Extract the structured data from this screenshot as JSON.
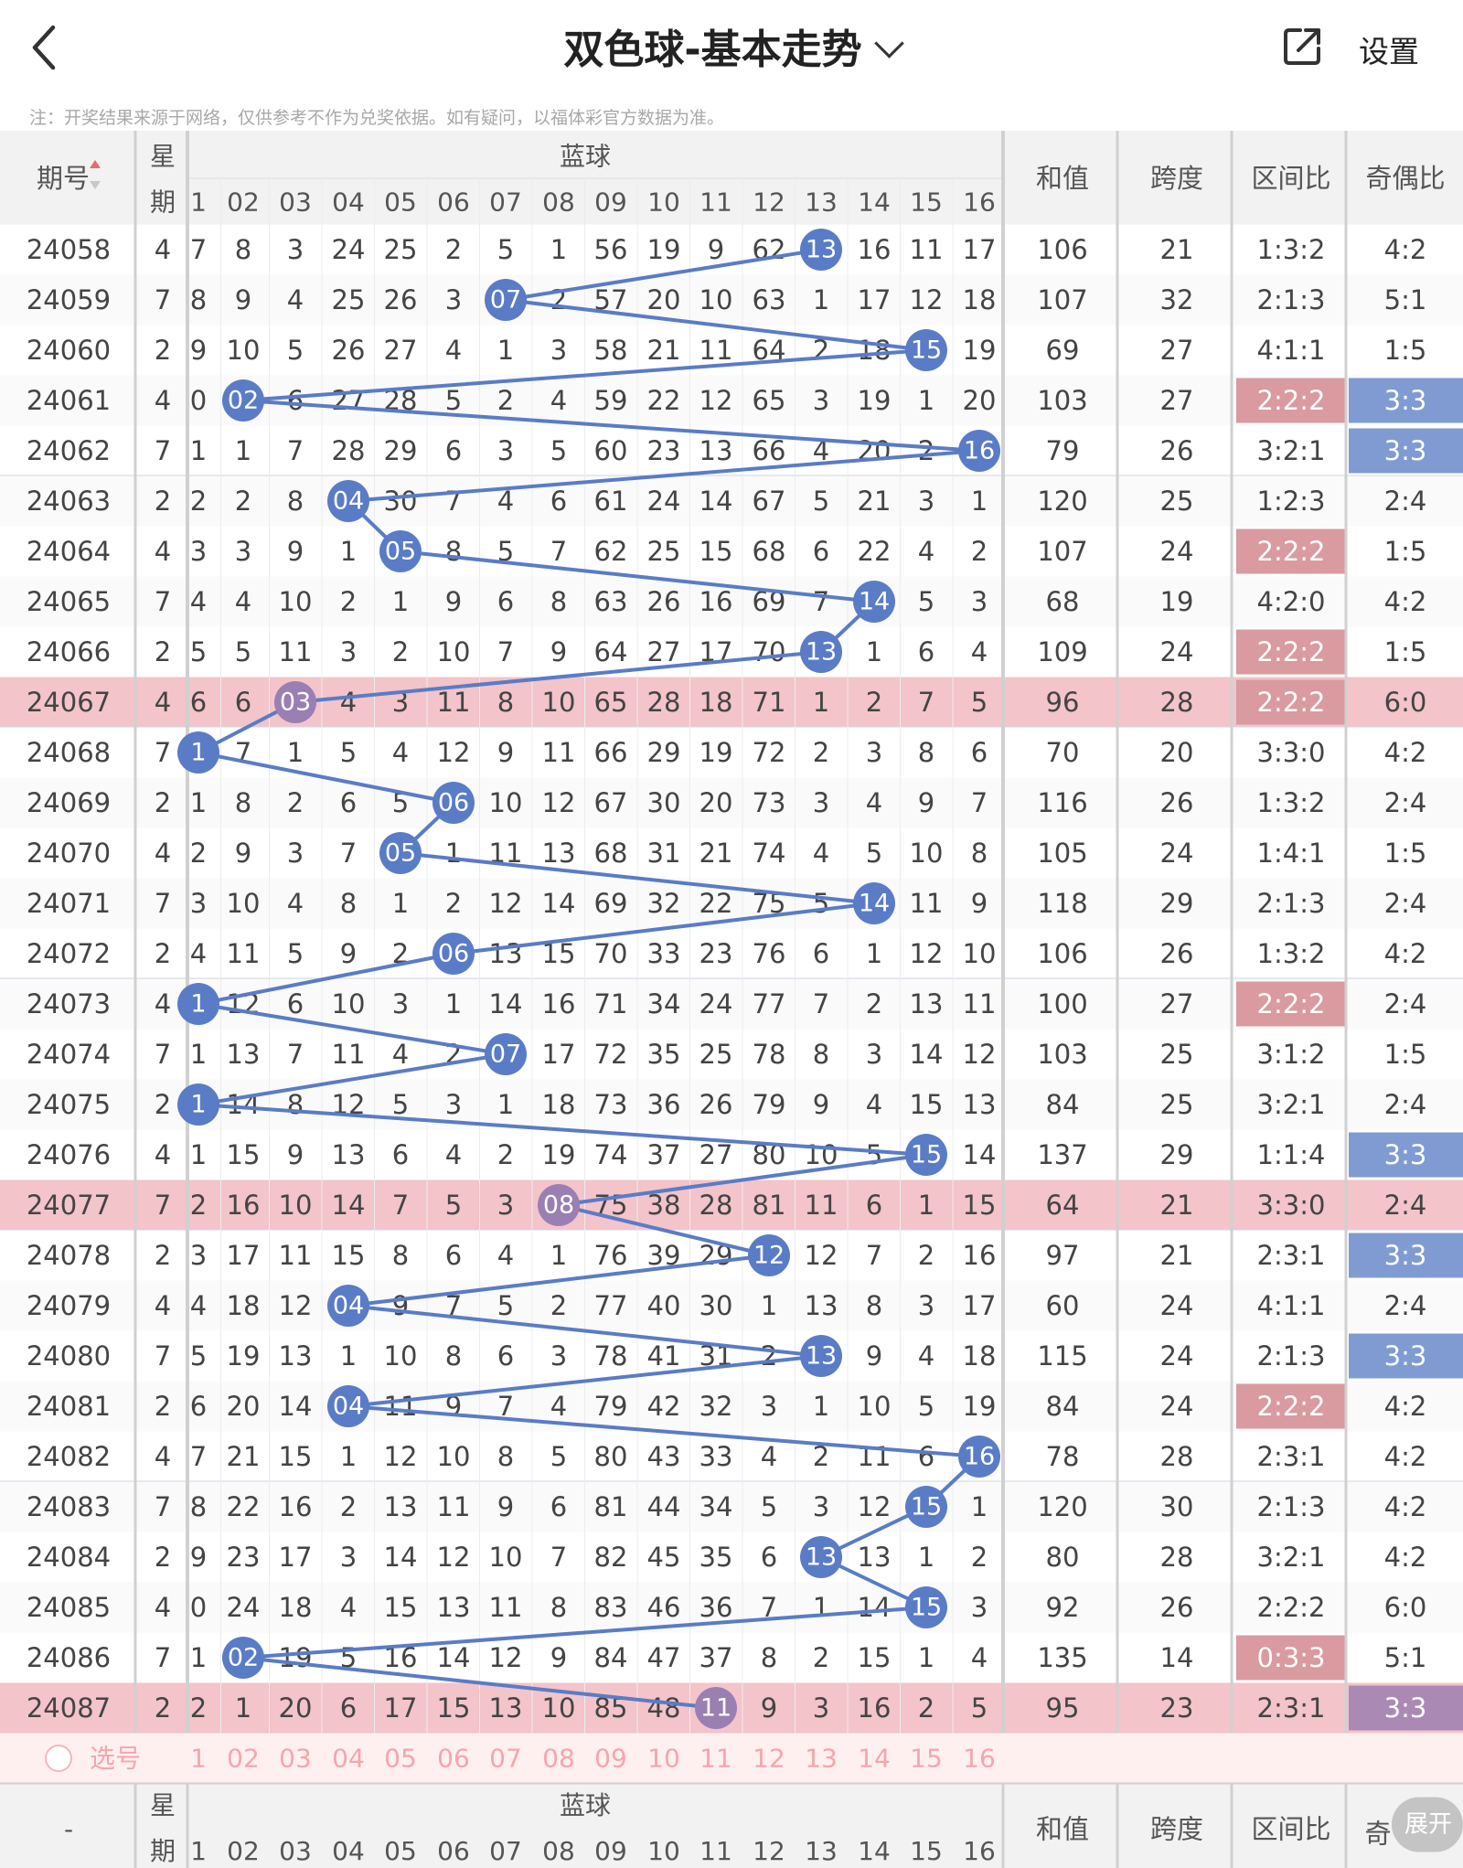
{
  "header": {
    "title": "双色球-基本走势",
    "settings_label": "设置"
  },
  "notice": "注：开奖结果来源于网络，仅供参考不作为兑奖依据。如有疑问，以福体彩官方数据为准。",
  "table": {
    "col_period": "期号",
    "col_weekday": [
      "星",
      "期"
    ],
    "col_blue": "蓝球",
    "col_sum": "和值",
    "col_span": "跨度",
    "col_zone": "区间比",
    "col_parity": "奇偶比",
    "col_parity_short": "奇",
    "ball_labels": [
      "1",
      "02",
      "03",
      "04",
      "05",
      "06",
      "07",
      "08",
      "09",
      "10",
      "11",
      "12",
      "13",
      "14",
      "15",
      "16"
    ],
    "select_label": "选号",
    "footer_period": "-",
    "expand_label": "展开",
    "rows": [
      {
        "period": "24058",
        "week": "4",
        "cells": [
          "7",
          "8",
          "3",
          "24",
          "25",
          "2",
          "5",
          "1",
          "56",
          "19",
          "9",
          "62",
          "13",
          "16",
          "11",
          "17"
        ],
        "sum": "106",
        "span": "21",
        "zone": "1:3:2",
        "parity": "4:2"
      },
      {
        "period": "24059",
        "week": "7",
        "cells": [
          "8",
          "9",
          "4",
          "25",
          "26",
          "3",
          "07",
          "2",
          "57",
          "20",
          "10",
          "63",
          "1",
          "17",
          "12",
          "18"
        ],
        "sum": "107",
        "span": "32",
        "zone": "2:1:3",
        "parity": "5:1"
      },
      {
        "period": "24060",
        "week": "2",
        "cells": [
          "9",
          "10",
          "5",
          "26",
          "27",
          "4",
          "1",
          "3",
          "58",
          "21",
          "11",
          "64",
          "2",
          "18",
          "15",
          "19"
        ],
        "sum": "69",
        "span": "27",
        "zone": "4:1:1",
        "parity": "1:5"
      },
      {
        "period": "24061",
        "week": "4",
        "cells": [
          "0",
          "02",
          "6",
          "27",
          "28",
          "5",
          "2",
          "4",
          "59",
          "22",
          "12",
          "65",
          "3",
          "19",
          "1",
          "20"
        ],
        "sum": "103",
        "span": "27",
        "zone": "2:2:2",
        "parity": "3:3"
      },
      {
        "period": "24062",
        "week": "7",
        "cells": [
          "1",
          "1",
          "7",
          "28",
          "29",
          "6",
          "3",
          "5",
          "60",
          "23",
          "13",
          "66",
          "4",
          "20",
          "2",
          "16"
        ],
        "sum": "79",
        "span": "26",
        "zone": "3:2:1",
        "parity": "3:3"
      },
      {
        "period": "24063",
        "week": "2",
        "cells": [
          "2",
          "2",
          "8",
          "04",
          "30",
          "7",
          "4",
          "6",
          "61",
          "24",
          "14",
          "67",
          "5",
          "21",
          "3",
          "1"
        ],
        "sum": "120",
        "span": "25",
        "zone": "1:2:3",
        "parity": "2:4"
      },
      {
        "period": "24064",
        "week": "4",
        "cells": [
          "3",
          "3",
          "9",
          "1",
          "05",
          "8",
          "5",
          "7",
          "62",
          "25",
          "15",
          "68",
          "6",
          "22",
          "4",
          "2"
        ],
        "sum": "107",
        "span": "24",
        "zone": "2:2:2",
        "parity": "1:5"
      },
      {
        "period": "24065",
        "week": "7",
        "cells": [
          "4",
          "4",
          "10",
          "2",
          "1",
          "9",
          "6",
          "8",
          "63",
          "26",
          "16",
          "69",
          "7",
          "14",
          "5",
          "3"
        ],
        "sum": "68",
        "span": "19",
        "zone": "4:2:0",
        "parity": "4:2"
      },
      {
        "period": "24066",
        "week": "2",
        "cells": [
          "5",
          "5",
          "11",
          "3",
          "2",
          "10",
          "7",
          "9",
          "64",
          "27",
          "17",
          "70",
          "13",
          "1",
          "6",
          "4"
        ],
        "sum": "109",
        "span": "24",
        "zone": "2:2:2",
        "parity": "1:5"
      },
      {
        "period": "24067",
        "week": "4",
        "cells": [
          "6",
          "6",
          "03",
          "4",
          "3",
          "11",
          "8",
          "10",
          "65",
          "28",
          "18",
          "71",
          "1",
          "2",
          "7",
          "5"
        ],
        "sum": "96",
        "span": "28",
        "zone": "2:2:2",
        "parity": "6:0"
      },
      {
        "period": "24068",
        "week": "7",
        "cells": [
          "1",
          "7",
          "1",
          "5",
          "4",
          "12",
          "9",
          "11",
          "66",
          "29",
          "19",
          "72",
          "2",
          "3",
          "8",
          "6"
        ],
        "sum": "70",
        "span": "20",
        "zone": "3:3:0",
        "parity": "4:2"
      },
      {
        "period": "24069",
        "week": "2",
        "cells": [
          "1",
          "8",
          "2",
          "6",
          "5",
          "06",
          "10",
          "12",
          "67",
          "30",
          "20",
          "73",
          "3",
          "4",
          "9",
          "7"
        ],
        "sum": "116",
        "span": "26",
        "zone": "1:3:2",
        "parity": "2:4"
      },
      {
        "period": "24070",
        "week": "4",
        "cells": [
          "2",
          "9",
          "3",
          "7",
          "05",
          "1",
          "11",
          "13",
          "68",
          "31",
          "21",
          "74",
          "4",
          "5",
          "10",
          "8"
        ],
        "sum": "105",
        "span": "24",
        "zone": "1:4:1",
        "parity": "1:5"
      },
      {
        "period": "24071",
        "week": "7",
        "cells": [
          "3",
          "10",
          "4",
          "8",
          "1",
          "2",
          "12",
          "14",
          "69",
          "32",
          "22",
          "75",
          "5",
          "14",
          "11",
          "9"
        ],
        "sum": "118",
        "span": "29",
        "zone": "2:1:3",
        "parity": "2:4"
      },
      {
        "period": "24072",
        "week": "2",
        "cells": [
          "4",
          "11",
          "5",
          "9",
          "2",
          "06",
          "13",
          "15",
          "70",
          "33",
          "23",
          "76",
          "6",
          "1",
          "12",
          "10"
        ],
        "sum": "106",
        "span": "26",
        "zone": "1:3:2",
        "parity": "4:2"
      },
      {
        "period": "24073",
        "week": "4",
        "cells": [
          "1",
          "12",
          "6",
          "10",
          "3",
          "1",
          "14",
          "16",
          "71",
          "34",
          "24",
          "77",
          "7",
          "2",
          "13",
          "11"
        ],
        "sum": "100",
        "span": "27",
        "zone": "2:2:2",
        "parity": "2:4"
      },
      {
        "period": "24074",
        "week": "7",
        "cells": [
          "1",
          "13",
          "7",
          "11",
          "4",
          "2",
          "07",
          "17",
          "72",
          "35",
          "25",
          "78",
          "8",
          "3",
          "14",
          "12"
        ],
        "sum": "103",
        "span": "25",
        "zone": "3:1:2",
        "parity": "1:5"
      },
      {
        "period": "24075",
        "week": "2",
        "cells": [
          "1",
          "14",
          "8",
          "12",
          "5",
          "3",
          "1",
          "18",
          "73",
          "36",
          "26",
          "79",
          "9",
          "4",
          "15",
          "13"
        ],
        "sum": "84",
        "span": "25",
        "zone": "3:2:1",
        "parity": "2:4"
      },
      {
        "period": "24076",
        "week": "4",
        "cells": [
          "1",
          "15",
          "9",
          "13",
          "6",
          "4",
          "2",
          "19",
          "74",
          "37",
          "27",
          "80",
          "10",
          "5",
          "15",
          "14"
        ],
        "sum": "137",
        "span": "29",
        "zone": "1:1:4",
        "parity": "3:3"
      },
      {
        "period": "24077",
        "week": "7",
        "cells": [
          "2",
          "16",
          "10",
          "14",
          "7",
          "5",
          "3",
          "08",
          "75",
          "38",
          "28",
          "81",
          "11",
          "6",
          "1",
          "15"
        ],
        "sum": "64",
        "span": "21",
        "zone": "3:3:0",
        "parity": "2:4"
      },
      {
        "period": "24078",
        "week": "2",
        "cells": [
          "3",
          "17",
          "11",
          "15",
          "8",
          "6",
          "4",
          "1",
          "76",
          "39",
          "29",
          "12",
          "12",
          "7",
          "2",
          "16"
        ],
        "sum": "97",
        "span": "21",
        "zone": "2:3:1",
        "parity": "3:3"
      },
      {
        "period": "24079",
        "week": "4",
        "cells": [
          "4",
          "18",
          "12",
          "04",
          "9",
          "7",
          "5",
          "2",
          "77",
          "40",
          "30",
          "1",
          "13",
          "8",
          "3",
          "17"
        ],
        "sum": "60",
        "span": "24",
        "zone": "4:1:1",
        "parity": "2:4"
      },
      {
        "period": "24080",
        "week": "7",
        "cells": [
          "5",
          "19",
          "13",
          "1",
          "10",
          "8",
          "6",
          "3",
          "78",
          "41",
          "31",
          "2",
          "13",
          "9",
          "4",
          "18"
        ],
        "sum": "115",
        "span": "24",
        "zone": "2:1:3",
        "parity": "3:3"
      },
      {
        "period": "24081",
        "week": "2",
        "cells": [
          "6",
          "20",
          "14",
          "04",
          "11",
          "9",
          "7",
          "4",
          "79",
          "42",
          "32",
          "3",
          "1",
          "10",
          "5",
          "19"
        ],
        "sum": "84",
        "span": "24",
        "zone": "2:2:2",
        "parity": "4:2"
      },
      {
        "period": "24082",
        "week": "4",
        "cells": [
          "7",
          "21",
          "15",
          "1",
          "12",
          "10",
          "8",
          "5",
          "80",
          "43",
          "33",
          "4",
          "2",
          "11",
          "6",
          "16"
        ],
        "sum": "78",
        "span": "28",
        "zone": "2:3:1",
        "parity": "4:2"
      },
      {
        "period": "24083",
        "week": "7",
        "cells": [
          "8",
          "22",
          "16",
          "2",
          "13",
          "11",
          "9",
          "6",
          "81",
          "44",
          "34",
          "5",
          "3",
          "12",
          "15",
          "1"
        ],
        "sum": "120",
        "span": "30",
        "zone": "2:1:3",
        "parity": "4:2"
      },
      {
        "period": "24084",
        "week": "2",
        "cells": [
          "9",
          "23",
          "17",
          "3",
          "14",
          "12",
          "10",
          "7",
          "82",
          "45",
          "35",
          "6",
          "13",
          "13",
          "1",
          "2"
        ],
        "sum": "80",
        "span": "28",
        "zone": "3:2:1",
        "parity": "4:2"
      },
      {
        "period": "24085",
        "week": "4",
        "cells": [
          "0",
          "24",
          "18",
          "4",
          "15",
          "13",
          "11",
          "8",
          "83",
          "46",
          "36",
          "7",
          "1",
          "14",
          "15",
          "3"
        ],
        "sum": "92",
        "span": "26",
        "zone": "2:2:2",
        "parity": "6:0"
      },
      {
        "period": "24086",
        "week": "7",
        "cells": [
          "1",
          "02",
          "19",
          "5",
          "16",
          "14",
          "12",
          "9",
          "84",
          "47",
          "37",
          "8",
          "2",
          "15",
          "1",
          "4"
        ],
        "sum": "135",
        "span": "14",
        "zone": "0:3:3",
        "parity": "5:1"
      },
      {
        "period": "24087",
        "week": "2",
        "cells": [
          "2",
          "1",
          "20",
          "6",
          "17",
          "15",
          "13",
          "10",
          "85",
          "48",
          "11",
          "9",
          "3",
          "16",
          "2",
          "5"
        ],
        "sum": "95",
        "span": "23",
        "zone": "2:3:1",
        "parity": "3:3"
      }
    ],
    "blue_hits": [
      13,
      7,
      15,
      2,
      16,
      4,
      5,
      14,
      13,
      3,
      1,
      6,
      5,
      14,
      6,
      1,
      7,
      1,
      15,
      8,
      12,
      4,
      13,
      4,
      16,
      15,
      13,
      15,
      2,
      11
    ],
    "highlight_rows": [
      9,
      19,
      29
    ],
    "zone_highlight_rows": [
      3,
      6,
      8,
      9,
      15,
      28,
      23
    ],
    "parity_highlight_rows": [
      3,
      4,
      18,
      20,
      22,
      29
    ],
    "colors": {
      "ball_blue": "#5a7cc6",
      "ball_purple": "#9a7fb3",
      "row_highlight": "#f3c4ca",
      "zone_highlight": "#d99aa0",
      "parity_highlight": "#7f9bd2",
      "parity_highlight_purple": "#aa8ab4",
      "header_bg": "#f2f2f2",
      "select_row_bg": "#fff0f0",
      "select_text": "#f4a6ac"
    }
  }
}
